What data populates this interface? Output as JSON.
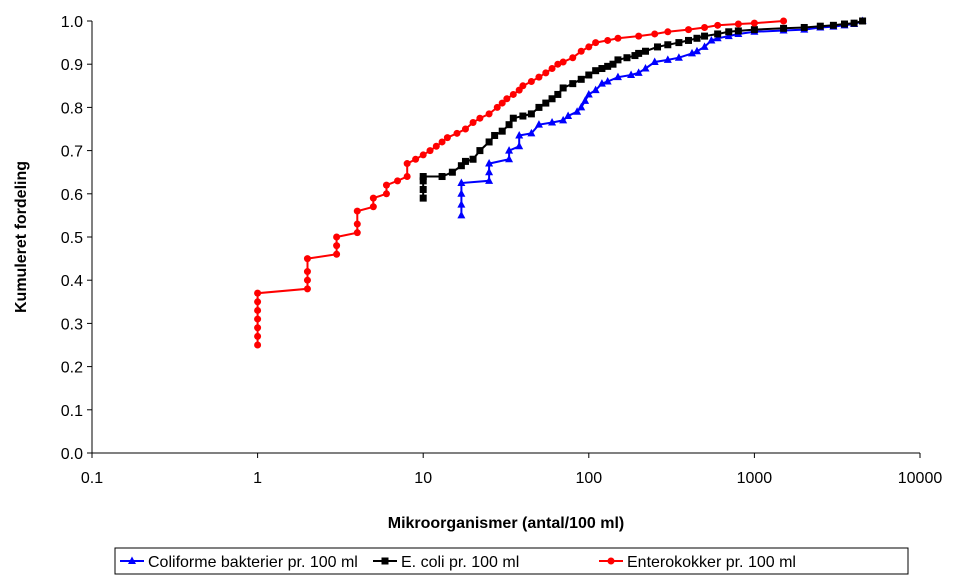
{
  "chart_data": {
    "type": "line",
    "title": "",
    "xlabel": "Mikroorganismer (antal/100 ml)",
    "ylabel": "Kumuleret fordeling",
    "xscale": "log",
    "xlim": [
      0.1,
      10000
    ],
    "ylim": [
      0.0,
      1.0
    ],
    "xticks": [
      "0.1",
      "1",
      "10",
      "100",
      "1000",
      "10000"
    ],
    "yticks": [
      "0.0",
      "0.1",
      "0.2",
      "0.3",
      "0.4",
      "0.5",
      "0.6",
      "0.7",
      "0.8",
      "0.9",
      "1.0"
    ],
    "grid": false,
    "legend_position": "bottom",
    "series": [
      {
        "name": "Coliforme bakterier pr. 100 ml",
        "color": "#0000ff",
        "marker": "triangle",
        "points": [
          [
            17,
            0.55
          ],
          [
            17,
            0.575
          ],
          [
            17,
            0.6
          ],
          [
            17,
            0.625
          ],
          [
            25,
            0.63
          ],
          [
            25,
            0.65
          ],
          [
            25,
            0.67
          ],
          [
            33,
            0.68
          ],
          [
            33,
            0.7
          ],
          [
            38,
            0.71
          ],
          [
            38,
            0.735
          ],
          [
            45,
            0.74
          ],
          [
            50,
            0.76
          ],
          [
            60,
            0.765
          ],
          [
            70,
            0.77
          ],
          [
            75,
            0.78
          ],
          [
            85,
            0.79
          ],
          [
            90,
            0.8
          ],
          [
            95,
            0.815
          ],
          [
            100,
            0.83
          ],
          [
            110,
            0.84
          ],
          [
            120,
            0.855
          ],
          [
            130,
            0.86
          ],
          [
            150,
            0.87
          ],
          [
            180,
            0.875
          ],
          [
            200,
            0.88
          ],
          [
            220,
            0.89
          ],
          [
            250,
            0.905
          ],
          [
            300,
            0.91
          ],
          [
            350,
            0.915
          ],
          [
            420,
            0.925
          ],
          [
            450,
            0.93
          ],
          [
            500,
            0.94
          ],
          [
            550,
            0.955
          ],
          [
            600,
            0.96
          ],
          [
            700,
            0.965
          ],
          [
            800,
            0.97
          ],
          [
            1000,
            0.975
          ],
          [
            1500,
            0.978
          ],
          [
            2000,
            0.98
          ],
          [
            2500,
            0.985
          ],
          [
            3000,
            0.987
          ],
          [
            3500,
            0.99
          ],
          [
            4000,
            0.993
          ],
          [
            4500,
            1.0
          ]
        ]
      },
      {
        "name": "E. coli pr. 100 ml",
        "color": "#000000",
        "marker": "square",
        "points": [
          [
            10,
            0.59
          ],
          [
            10,
            0.61
          ],
          [
            10,
            0.63
          ],
          [
            10,
            0.64
          ],
          [
            13,
            0.64
          ],
          [
            15,
            0.65
          ],
          [
            17,
            0.665
          ],
          [
            18,
            0.675
          ],
          [
            20,
            0.68
          ],
          [
            22,
            0.7
          ],
          [
            25,
            0.72
          ],
          [
            27,
            0.735
          ],
          [
            30,
            0.745
          ],
          [
            33,
            0.76
          ],
          [
            35,
            0.775
          ],
          [
            40,
            0.78
          ],
          [
            45,
            0.785
          ],
          [
            50,
            0.8
          ],
          [
            55,
            0.81
          ],
          [
            60,
            0.82
          ],
          [
            65,
            0.83
          ],
          [
            70,
            0.845
          ],
          [
            80,
            0.855
          ],
          [
            90,
            0.865
          ],
          [
            100,
            0.875
          ],
          [
            110,
            0.885
          ],
          [
            120,
            0.89
          ],
          [
            130,
            0.895
          ],
          [
            140,
            0.9
          ],
          [
            150,
            0.91
          ],
          [
            170,
            0.915
          ],
          [
            190,
            0.92
          ],
          [
            200,
            0.925
          ],
          [
            220,
            0.93
          ],
          [
            260,
            0.94
          ],
          [
            300,
            0.945
          ],
          [
            350,
            0.95
          ],
          [
            400,
            0.955
          ],
          [
            450,
            0.96
          ],
          [
            500,
            0.965
          ],
          [
            600,
            0.97
          ],
          [
            700,
            0.975
          ],
          [
            800,
            0.977
          ],
          [
            1000,
            0.98
          ],
          [
            1500,
            0.983
          ],
          [
            2000,
            0.985
          ],
          [
            2500,
            0.988
          ],
          [
            3000,
            0.99
          ],
          [
            3500,
            0.993
          ],
          [
            4000,
            0.995
          ],
          [
            4500,
            1.0
          ]
        ]
      },
      {
        "name": "Enterokokker pr. 100 ml",
        "color": "#ff0000",
        "marker": "circle",
        "points": [
          [
            1,
            0.25
          ],
          [
            1,
            0.27
          ],
          [
            1,
            0.29
          ],
          [
            1,
            0.31
          ],
          [
            1,
            0.33
          ],
          [
            1,
            0.35
          ],
          [
            1,
            0.37
          ],
          [
            2,
            0.38
          ],
          [
            2,
            0.4
          ],
          [
            2,
            0.42
          ],
          [
            2,
            0.45
          ],
          [
            3,
            0.46
          ],
          [
            3,
            0.48
          ],
          [
            3,
            0.5
          ],
          [
            4,
            0.51
          ],
          [
            4,
            0.53
          ],
          [
            4,
            0.56
          ],
          [
            5,
            0.57
          ],
          [
            5,
            0.59
          ],
          [
            6,
            0.6
          ],
          [
            6,
            0.62
          ],
          [
            7,
            0.63
          ],
          [
            8,
            0.64
          ],
          [
            8,
            0.67
          ],
          [
            9,
            0.68
          ],
          [
            10,
            0.69
          ],
          [
            11,
            0.7
          ],
          [
            12,
            0.71
          ],
          [
            13,
            0.72
          ],
          [
            14,
            0.73
          ],
          [
            16,
            0.74
          ],
          [
            18,
            0.75
          ],
          [
            20,
            0.765
          ],
          [
            22,
            0.775
          ],
          [
            25,
            0.785
          ],
          [
            28,
            0.8
          ],
          [
            30,
            0.81
          ],
          [
            32,
            0.82
          ],
          [
            35,
            0.83
          ],
          [
            38,
            0.84
          ],
          [
            40,
            0.85
          ],
          [
            45,
            0.86
          ],
          [
            50,
            0.87
          ],
          [
            55,
            0.88
          ],
          [
            60,
            0.89
          ],
          [
            65,
            0.9
          ],
          [
            70,
            0.905
          ],
          [
            80,
            0.915
          ],
          [
            90,
            0.93
          ],
          [
            100,
            0.94
          ],
          [
            110,
            0.95
          ],
          [
            130,
            0.955
          ],
          [
            150,
            0.96
          ],
          [
            200,
            0.965
          ],
          [
            250,
            0.97
          ],
          [
            300,
            0.975
          ],
          [
            400,
            0.98
          ],
          [
            500,
            0.985
          ],
          [
            600,
            0.99
          ],
          [
            800,
            0.993
          ],
          [
            1000,
            0.995
          ],
          [
            1500,
            1.0
          ]
        ]
      }
    ]
  }
}
